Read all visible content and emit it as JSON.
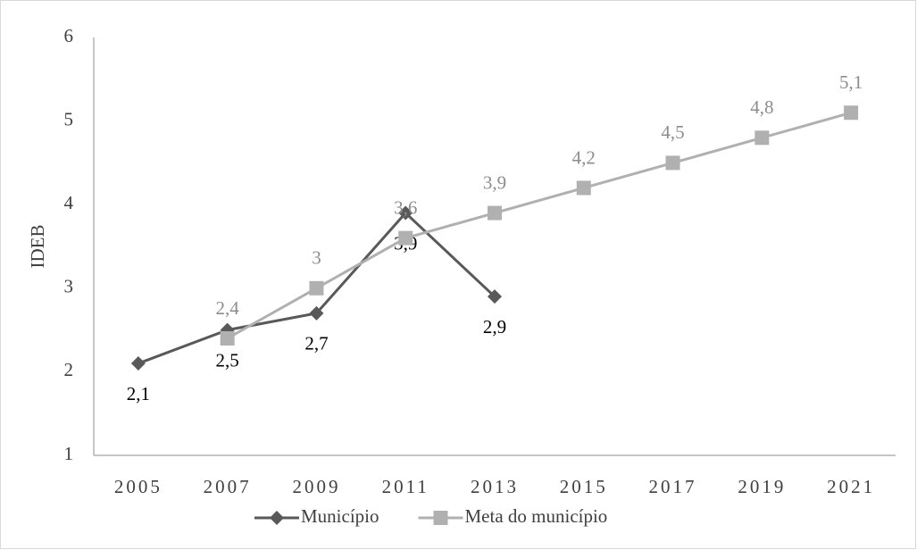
{
  "chart_data": {
    "type": "line",
    "categories": [
      "2005",
      "2007",
      "2009",
      "2011",
      "2013",
      "2015",
      "2017",
      "2019",
      "2021"
    ],
    "y_label": "IDEB",
    "ylim": [
      1,
      6
    ],
    "yticks": [
      1,
      2,
      3,
      4,
      5,
      6
    ],
    "grid": false,
    "legend": "bottom",
    "series": [
      {
        "name": "Município",
        "color": "#595959",
        "marker": "diamond",
        "values": [
          2.1,
          2.5,
          2.7,
          3.9,
          2.9,
          null,
          null,
          null,
          null
        ],
        "value_labels": [
          "2,1",
          "2,5",
          "2,7",
          "3,9",
          "2,9",
          null,
          null,
          null,
          null
        ]
      },
      {
        "name": "Meta do município",
        "color": "#b0b0b0",
        "marker": "square",
        "values": [
          null,
          2.4,
          3,
          3.6,
          3.9,
          4.2,
          4.5,
          4.8,
          5.1
        ],
        "value_labels": [
          null,
          "2,4",
          "3",
          "3,6",
          "3,9",
          "4,2",
          "4,5",
          "4,8",
          "5,1"
        ]
      }
    ]
  }
}
